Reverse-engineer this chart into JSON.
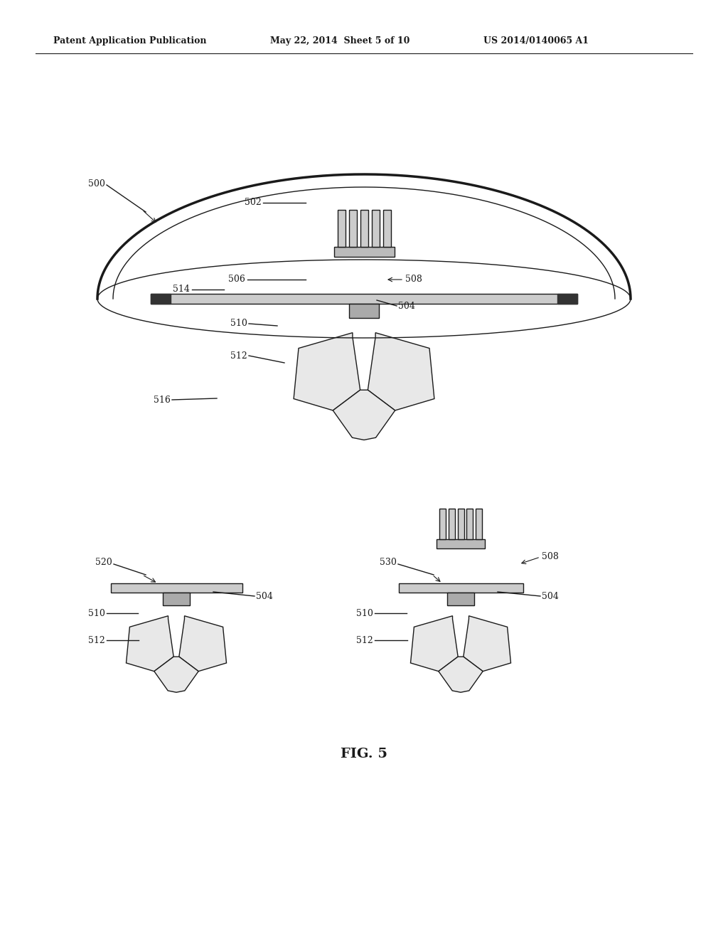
{
  "bg_color": "#ffffff",
  "header_left": "Patent Application Publication",
  "header_mid": "May 22, 2014  Sheet 5 of 10",
  "header_right": "US 2014/0140065 A1",
  "fig_label": "FIG. 5",
  "color_main": "#1a1a1a",
  "color_dark": "#333333",
  "color_mid": "#aaaaaa",
  "color_light": "#dddddd",
  "color_bg": "#f0f0f0"
}
